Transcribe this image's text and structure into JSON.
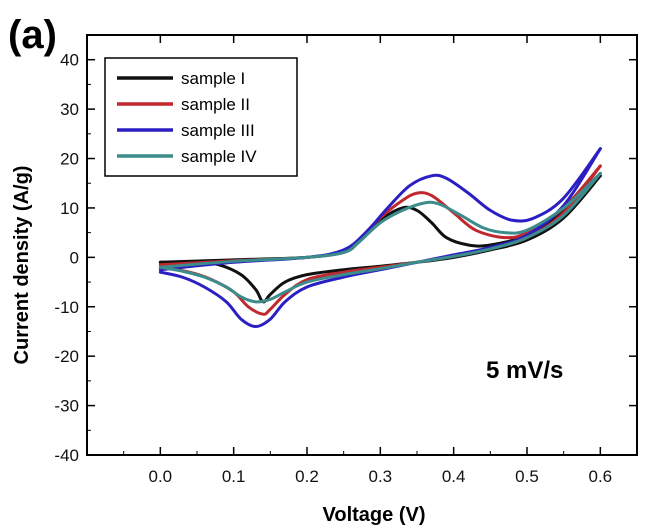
{
  "panel_label": "(a)",
  "chart_data": {
    "type": "line",
    "title": "",
    "xlabel": "Voltage (V)",
    "ylabel": "Current density (A/g)",
    "xlim": [
      -0.1,
      0.65
    ],
    "ylim": [
      -40,
      45
    ],
    "xticks": [
      0.0,
      0.1,
      0.2,
      0.3,
      0.4,
      0.5,
      0.6
    ],
    "xtick_labels": [
      "0.0",
      "0.1",
      "0.2",
      "0.3",
      "0.4",
      "0.5",
      "0.6"
    ],
    "yticks": [
      -40,
      -30,
      -20,
      -10,
      0,
      10,
      20,
      30,
      40
    ],
    "ytick_labels": [
      "-40",
      "-30",
      "-20",
      "-10",
      "0",
      "10",
      "20",
      "30",
      "40"
    ],
    "grid": false,
    "legend_position": "top-left",
    "annotation": "5 mV/s",
    "series": [
      {
        "name": "sample I",
        "color": "#111111",
        "anodic": [
          [
            0.0,
            -1.0
          ],
          [
            0.1,
            -0.5
          ],
          [
            0.2,
            0.0
          ],
          [
            0.25,
            1.0
          ],
          [
            0.27,
            3.0
          ],
          [
            0.3,
            7.5
          ],
          [
            0.33,
            10.0
          ],
          [
            0.35,
            9.5
          ],
          [
            0.37,
            7.0
          ],
          [
            0.39,
            4.0
          ],
          [
            0.42,
            2.5
          ],
          [
            0.45,
            2.5
          ],
          [
            0.5,
            4.5
          ],
          [
            0.55,
            9.5
          ],
          [
            0.6,
            16.5
          ]
        ],
        "cathodic": [
          [
            0.6,
            16.5
          ],
          [
            0.55,
            8.0
          ],
          [
            0.5,
            3.5
          ],
          [
            0.45,
            1.5
          ],
          [
            0.4,
            0.0
          ],
          [
            0.35,
            -1.0
          ],
          [
            0.3,
            -1.8
          ],
          [
            0.25,
            -2.5
          ],
          [
            0.2,
            -3.5
          ],
          [
            0.17,
            -5.0
          ],
          [
            0.15,
            -7.5
          ],
          [
            0.14,
            -9.0
          ],
          [
            0.13,
            -6.5
          ],
          [
            0.11,
            -3.5
          ],
          [
            0.08,
            -1.5
          ],
          [
            0.05,
            -1.0
          ],
          [
            0.0,
            -1.0
          ]
        ]
      },
      {
        "name": "sample II",
        "color": "#c0282d",
        "anodic": [
          [
            0.0,
            -1.5
          ],
          [
            0.1,
            -0.7
          ],
          [
            0.2,
            0.0
          ],
          [
            0.25,
            1.2
          ],
          [
            0.27,
            3.5
          ],
          [
            0.3,
            8.0
          ],
          [
            0.33,
            11.5
          ],
          [
            0.35,
            13.0
          ],
          [
            0.37,
            12.5
          ],
          [
            0.4,
            9.0
          ],
          [
            0.43,
            5.5
          ],
          [
            0.47,
            4.0
          ],
          [
            0.5,
            5.0
          ],
          [
            0.55,
            10.0
          ],
          [
            0.6,
            18.5
          ]
        ],
        "cathodic": [
          [
            0.6,
            18.5
          ],
          [
            0.55,
            9.0
          ],
          [
            0.5,
            4.0
          ],
          [
            0.45,
            1.8
          ],
          [
            0.4,
            0.3
          ],
          [
            0.35,
            -1.0
          ],
          [
            0.3,
            -2.0
          ],
          [
            0.25,
            -3.0
          ],
          [
            0.2,
            -4.5
          ],
          [
            0.17,
            -7.5
          ],
          [
            0.15,
            -10.5
          ],
          [
            0.14,
            -11.5
          ],
          [
            0.12,
            -10.0
          ],
          [
            0.1,
            -7.0
          ],
          [
            0.07,
            -4.5
          ],
          [
            0.04,
            -3.0
          ],
          [
            0.0,
            -2.0
          ]
        ]
      },
      {
        "name": "sample III",
        "color": "#2b1fc4",
        "anodic": [
          [
            0.0,
            -2.5
          ],
          [
            0.1,
            -1.0
          ],
          [
            0.2,
            0.0
          ],
          [
            0.25,
            1.5
          ],
          [
            0.28,
            5.0
          ],
          [
            0.31,
            10.0
          ],
          [
            0.34,
            14.5
          ],
          [
            0.37,
            16.5
          ],
          [
            0.39,
            16.0
          ],
          [
            0.42,
            13.0
          ],
          [
            0.45,
            9.5
          ],
          [
            0.48,
            7.5
          ],
          [
            0.51,
            8.0
          ],
          [
            0.55,
            12.0
          ],
          [
            0.6,
            22.0
          ]
        ],
        "cathodic": [
          [
            0.6,
            22.0
          ],
          [
            0.55,
            10.5
          ],
          [
            0.5,
            4.5
          ],
          [
            0.45,
            2.0
          ],
          [
            0.4,
            0.5
          ],
          [
            0.35,
            -1.0
          ],
          [
            0.3,
            -2.5
          ],
          [
            0.25,
            -4.0
          ],
          [
            0.2,
            -6.0
          ],
          [
            0.17,
            -9.0
          ],
          [
            0.15,
            -12.5
          ],
          [
            0.13,
            -14.0
          ],
          [
            0.11,
            -12.5
          ],
          [
            0.09,
            -9.0
          ],
          [
            0.06,
            -6.0
          ],
          [
            0.03,
            -4.0
          ],
          [
            0.0,
            -3.0
          ]
        ]
      },
      {
        "name": "sample IV",
        "color": "#3c8c8c",
        "anodic": [
          [
            0.0,
            -2.0
          ],
          [
            0.1,
            -0.8
          ],
          [
            0.2,
            0.0
          ],
          [
            0.25,
            1.0
          ],
          [
            0.27,
            3.0
          ],
          [
            0.3,
            7.0
          ],
          [
            0.33,
            9.5
          ],
          [
            0.36,
            11.0
          ],
          [
            0.38,
            10.8
          ],
          [
            0.41,
            8.5
          ],
          [
            0.44,
            6.0
          ],
          [
            0.47,
            5.0
          ],
          [
            0.5,
            5.5
          ],
          [
            0.55,
            10.0
          ],
          [
            0.6,
            17.0
          ]
        ],
        "cathodic": [
          [
            0.6,
            17.0
          ],
          [
            0.55,
            8.5
          ],
          [
            0.5,
            4.0
          ],
          [
            0.45,
            1.7
          ],
          [
            0.4,
            0.2
          ],
          [
            0.35,
            -1.0
          ],
          [
            0.3,
            -2.3
          ],
          [
            0.25,
            -3.5
          ],
          [
            0.2,
            -5.0
          ],
          [
            0.17,
            -7.0
          ],
          [
            0.15,
            -8.5
          ],
          [
            0.13,
            -9.0
          ],
          [
            0.11,
            -8.0
          ],
          [
            0.09,
            -6.0
          ],
          [
            0.06,
            -4.0
          ],
          [
            0.03,
            -2.8
          ],
          [
            0.0,
            -2.0
          ]
        ]
      }
    ]
  }
}
